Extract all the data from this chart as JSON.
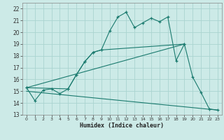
{
  "xlabel": "Humidex (Indice chaleur)",
  "bg_color": "#cceae7",
  "grid_color": "#aad4d0",
  "line_color": "#1a7a6e",
  "xlim": [
    -0.5,
    23.5
  ],
  "ylim": [
    13,
    22.5
  ],
  "xticks": [
    0,
    1,
    2,
    3,
    4,
    5,
    6,
    7,
    8,
    9,
    10,
    11,
    12,
    13,
    14,
    15,
    16,
    17,
    18,
    19,
    20,
    21,
    22,
    23
  ],
  "yticks": [
    13,
    14,
    15,
    16,
    17,
    18,
    19,
    20,
    21,
    22
  ],
  "series1_x": [
    0,
    1,
    2,
    3,
    4,
    5,
    6,
    7,
    8,
    9,
    10,
    11,
    12,
    13,
    14,
    15,
    16,
    17,
    18,
    19,
    20,
    21,
    22,
    23
  ],
  "series1_y": [
    15.3,
    14.2,
    15.1,
    15.2,
    14.8,
    15.2,
    16.4,
    17.5,
    18.3,
    18.5,
    20.1,
    21.3,
    21.7,
    20.4,
    20.8,
    21.2,
    20.9,
    21.3,
    17.6,
    19.0,
    16.2,
    14.9,
    13.5,
    13.4
  ],
  "series2_x": [
    0,
    5,
    6,
    7,
    8,
    9,
    19
  ],
  "series2_y": [
    15.3,
    15.2,
    16.4,
    17.5,
    18.3,
    18.5,
    19.0
  ],
  "series3_x": [
    0,
    19
  ],
  "series3_y": [
    15.3,
    19.0
  ],
  "series4_x": [
    0,
    23
  ],
  "series4_y": [
    15.0,
    13.4
  ]
}
